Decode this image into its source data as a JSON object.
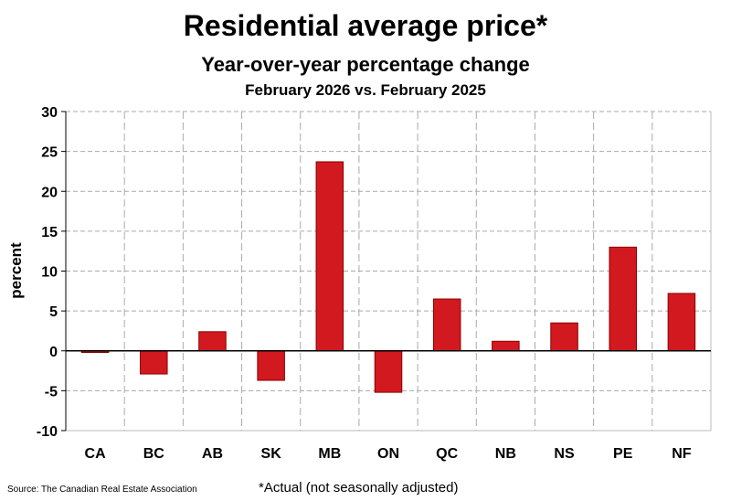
{
  "chart_data": {
    "type": "bar",
    "title": "Residential average price*",
    "subtitle": "Year-over-year percentage change",
    "subtitle2": "February 2026 vs. February 2025",
    "ylabel": "percent",
    "xlabel": "",
    "ylim": [
      -10,
      30
    ],
    "yticks": [
      -10,
      -5,
      0,
      5,
      10,
      15,
      20,
      25,
      30
    ],
    "categories": [
      "CA",
      "BC",
      "AB",
      "SK",
      "MB",
      "ON",
      "QC",
      "NB",
      "NS",
      "PE",
      "NF"
    ],
    "values": [
      -0.2,
      -2.9,
      2.4,
      -3.7,
      23.7,
      -5.2,
      6.5,
      1.2,
      3.5,
      13.0,
      7.2
    ],
    "grid": true,
    "bar_color": "#d2191f",
    "bar_edge_color": "#8b0000",
    "source": "Source: The Canadian Real Estate Association",
    "footnote": "*Actual (not seasonally adjusted)"
  }
}
